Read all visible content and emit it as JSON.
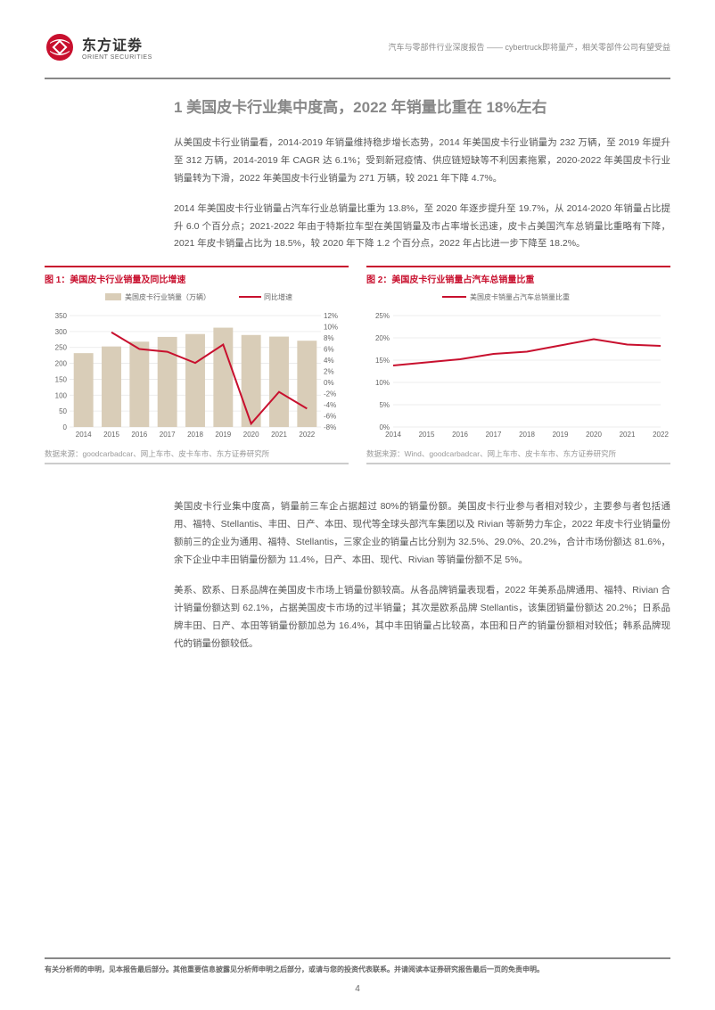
{
  "header": {
    "brand_cn": "东方证劵",
    "brand_en": "ORIENT SECURITIES",
    "meta": "汽车与零部件行业深度报告 —— cybertruck即将量产，相关零部件公司有望受益"
  },
  "section": {
    "h1": "1 美国皮卡行业集中度高，2022 年销量比重在 18%左右",
    "p1": "从美国皮卡行业销量看，2014-2019 年销量维持稳步增长态势，2014 年美国皮卡行业销量为 232 万辆，至 2019 年提升至 312 万辆，2014-2019 年 CAGR 达 6.1%；受到新冠疫情、供应链短缺等不利因素拖累，2020-2022 年美国皮卡行业销量转为下滑，2022 年美国皮卡行业销量为 271 万辆，较 2021 年下降 4.7%。",
    "p2": "2014 年美国皮卡行业销量占汽车行业总销量比重为 13.8%，至 2020 年逐步提升至 19.7%，从 2014-2020 年销量占比提升 6.0 个百分点；2021-2022 年由于特斯拉车型在美国销量及市占率增长迅速，皮卡占美国汽车总销量比重略有下降，2021 年皮卡销量占比为 18.5%，较 2020 年下降 1.2 个百分点，2022 年占比进一步下降至 18.2%。",
    "p3": "美国皮卡行业集中度高，销量前三车企占据超过 80%的销量份额。美国皮卡行业参与者相对较少，主要参与者包括通用、福特、Stellantis、丰田、日产、本田、现代等全球头部汽车集团以及 Rivian 等新势力车企，2022 年皮卡行业销量份额前三的企业为通用、福特、Stellantis，三家企业的销量占比分别为 32.5%、29.0%、20.2%，合计市场份额达 81.6%，余下企业中丰田销量份额为 11.4%，日产、本田、现代、Rivian 等销量份额不足 5%。",
    "p4": "美系、欧系、日系品牌在美国皮卡市场上销量份额较高。从各品牌销量表现看，2022 年美系品牌通用、福特、Rivian 合计销量份额达到 62.1%，占据美国皮卡市场的过半销量；其次是欧系品牌 Stellantis，该集团销量份额达 20.2%；日系品牌丰田、日产、本田等销量份额加总为 16.4%，其中丰田销量占比较高，本田和日产的销量份额相对较低；韩系品牌现代的销量份额较低。"
  },
  "chart1": {
    "type": "bar_line_dual_axis",
    "title": "图 1：美国皮卡行业销量及同比增速",
    "legend_bar": "美国皮卡行业销量（万辆）",
    "legend_line": "同比增速",
    "categories": [
      "2014",
      "2015",
      "2016",
      "2017",
      "2018",
      "2019",
      "2020",
      "2021",
      "2022"
    ],
    "bar_values": [
      232,
      253,
      268,
      283,
      292,
      312,
      289,
      284,
      271
    ],
    "line_values": [
      null,
      9.0,
      6.0,
      5.5,
      3.5,
      6.8,
      -7.4,
      -1.7,
      -4.7
    ],
    "y1_min": 0,
    "y1_max": 350,
    "y1_step": 50,
    "y2_min": -8,
    "y2_max": 12,
    "y2_step": 2,
    "bar_color": "#d9cdb8",
    "line_color": "#c8102e",
    "grid_color": "#e8e8e8",
    "axis_fontsize": 8,
    "source": "数据来源：goodcarbadcar、网上车市、皮卡车市、东方证券研究所"
  },
  "chart2": {
    "type": "line",
    "title": "图 2：美国皮卡行业销量占汽车总销量比重",
    "legend_line": "美国皮卡销量占汽车总销量比重",
    "categories": [
      "2014",
      "2015",
      "2016",
      "2017",
      "2018",
      "2019",
      "2020",
      "2021",
      "2022"
    ],
    "values": [
      13.8,
      14.5,
      15.2,
      16.4,
      16.9,
      18.3,
      19.7,
      18.5,
      18.2
    ],
    "y_min": 0,
    "y_max": 25,
    "y_step": 5,
    "line_color": "#c8102e",
    "grid_color": "#e8e8e8",
    "axis_fontsize": 8,
    "source": "数据来源：Wind、goodcarbadcar、网上车市、皮卡车市、东方证券研究所"
  },
  "footer": {
    "disclaimer": "有关分析师的申明，见本报告最后部分。其他重要信息披露见分析师申明之后部分，或请与您的投资代表联系。并请阅读本证券研究报告最后一页的免责申明。",
    "page_num": "4"
  },
  "logo_color": "#c8102e"
}
